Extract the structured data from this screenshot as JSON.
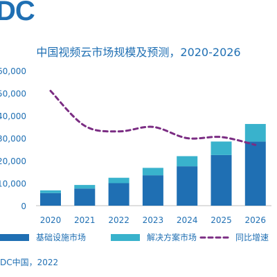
{
  "brand": {
    "logo_text": "DC"
  },
  "source": "DC中国，2022",
  "chart_data": {
    "type": "bar",
    "title": "中国视频云市场规模及预测，2020-2026",
    "categories": [
      "2020",
      "2021",
      "2022",
      "2023",
      "2024",
      "2025",
      "2026"
    ],
    "ylim": [
      0,
      60000
    ],
    "y_ticks": [
      "0",
      "10,000",
      "20,000",
      "30,000",
      "40,000",
      "50,000",
      "60,000"
    ],
    "y_tick_values": [
      0,
      10000,
      20000,
      30000,
      40000,
      50000,
      60000
    ],
    "stacked": true,
    "series": [
      {
        "name": "基础设施市场",
        "type": "bar",
        "color": "#1f6fb3",
        "values": [
          5600,
          7600,
          10000,
          13500,
          17500,
          22500,
          28500
        ]
      },
      {
        "name": "解决方案市场",
        "type": "bar",
        "color": "#39b2cc",
        "values": [
          1200,
          1600,
          2400,
          3300,
          4500,
          6000,
          7800
        ]
      },
      {
        "name": "同比增速",
        "type": "line",
        "style": "dashed",
        "color": "#7b2d83",
        "values": [
          51000,
          35500,
          33000,
          35000,
          30000,
          30500,
          27000
        ]
      }
    ],
    "legend_position": "bottom",
    "grid": false
  }
}
